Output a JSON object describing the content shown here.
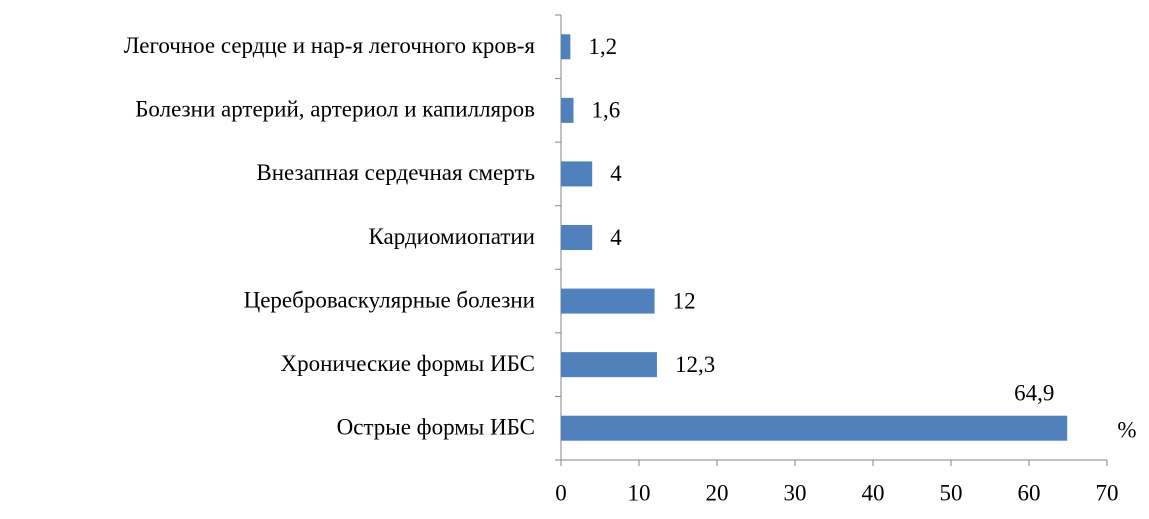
{
  "chart_data": {
    "type": "hbar",
    "categories": [
      "Легочное сердце и нар-я легочного кров-я",
      "Болезни артерий, артериол и капилляров",
      "Внезапная сердечная смерть",
      "Кардиомиопатии",
      "Цереброваскулярные болезни",
      "Хронические формы ИБС",
      "Острые формы ИБС"
    ],
    "values": [
      1.2,
      1.6,
      4,
      4,
      12,
      12.3,
      64.9
    ],
    "value_labels": [
      "1,2",
      "1,6",
      "4",
      "4",
      "12",
      "12,3",
      "64,9"
    ],
    "color": "#4f81bd",
    "xlabel": "%",
    "xlim": [
      0,
      70
    ],
    "xticks": [
      0,
      10,
      20,
      30,
      40,
      50,
      60,
      70
    ],
    "grid": false
  }
}
